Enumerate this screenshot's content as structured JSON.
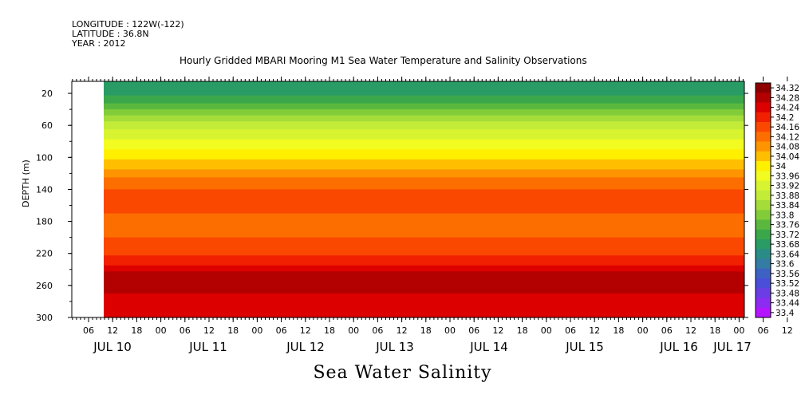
{
  "header": {
    "longitude": "LONGITUDE : 122W(-122)",
    "latitude": "LATITUDE : 36.8N",
    "year": "YEAR : 2012"
  },
  "chart_data": {
    "type": "heatmap",
    "title": "Hourly Gridded MBARI Mooring M1 Sea Water Temperature and Salinity Observations",
    "xlabel": "Sea Water Salinity",
    "ylabel": "DEPTH (m)",
    "y_ticks": [
      20,
      60,
      100,
      140,
      180,
      220,
      260,
      300
    ],
    "ylim": [
      300,
      5
    ],
    "x_hour_ticks": [
      "06",
      "12",
      "18",
      "00",
      "06",
      "12",
      "18",
      "00",
      "06",
      "12",
      "18",
      "00",
      "06",
      "12",
      "18",
      "00",
      "06",
      "12",
      "18",
      "00",
      "06",
      "12",
      "18",
      "00",
      "06",
      "12",
      "18",
      "00",
      "06",
      "12",
      "18",
      "00"
    ],
    "x_day_labels": [
      "JUL 10",
      "JUL 11",
      "JUL 12",
      "JUL 13",
      "JUL 14",
      "JUL 15",
      "JUL 16",
      "JUL 17"
    ],
    "colorbar_levels": [
      34.32,
      34.28,
      34.24,
      34.2,
      34.16,
      34.12,
      34.08,
      34.04,
      34,
      33.96,
      33.92,
      33.88,
      33.84,
      33.8,
      33.76,
      33.72,
      33.68,
      33.64,
      33.6,
      33.56,
      33.52,
      33.48,
      33.44,
      33.4
    ],
    "colorbar_labels": [
      "34.32",
      "34.28",
      "34.24",
      "34.2",
      "34.16",
      "34.12",
      "34.08",
      "34.04",
      "34",
      "33.96",
      "33.92",
      "33.88",
      "33.84",
      "33.8",
      "33.76",
      "33.72",
      "33.68",
      "33.64",
      "33.6",
      "33.56",
      "33.52",
      "33.48",
      "33.44",
      "33.4"
    ],
    "salinity_profile": [
      {
        "depth": 10,
        "value": 33.66
      },
      {
        "depth": 30,
        "value": 33.72
      },
      {
        "depth": 50,
        "value": 33.84
      },
      {
        "depth": 70,
        "value": 33.92
      },
      {
        "depth": 90,
        "value": 33.98
      },
      {
        "depth": 110,
        "value": 34.04
      },
      {
        "depth": 130,
        "value": 34.12
      },
      {
        "depth": 150,
        "value": 34.16
      },
      {
        "depth": 170,
        "value": 34.14
      },
      {
        "depth": 190,
        "value": 34.13
      },
      {
        "depth": 210,
        "value": 34.15
      },
      {
        "depth": 230,
        "value": 34.2
      },
      {
        "depth": 250,
        "value": 34.3
      },
      {
        "depth": 270,
        "value": 34.26
      },
      {
        "depth": 290,
        "value": 34.24
      },
      {
        "depth": 300,
        "value": 34.24
      }
    ],
    "colors": {
      "34.32": "#8c0000",
      "34.28": "#b30000",
      "34.24": "#dc0000",
      "34.2": "#f02000",
      "34.16": "#fa4800",
      "34.12": "#fd6e00",
      "34.08": "#fe9500",
      "34.04": "#ffbf00",
      "34": "#fff000",
      "33.96": "#f2fc20",
      "33.92": "#d8f430",
      "33.88": "#c2ec38",
      "33.84": "#a4dc3a",
      "33.8": "#82cc3a",
      "33.76": "#5ab83e",
      "33.72": "#3aa84a",
      "33.68": "#289c64",
      "33.64": "#2a8c86",
      "33.6": "#347ca4",
      "33.56": "#3e62c4",
      "33.52": "#4a4ed8",
      "33.48": "#6a3ee4",
      "33.44": "#8c2cf0",
      "33.4": "#b414ff"
    }
  }
}
